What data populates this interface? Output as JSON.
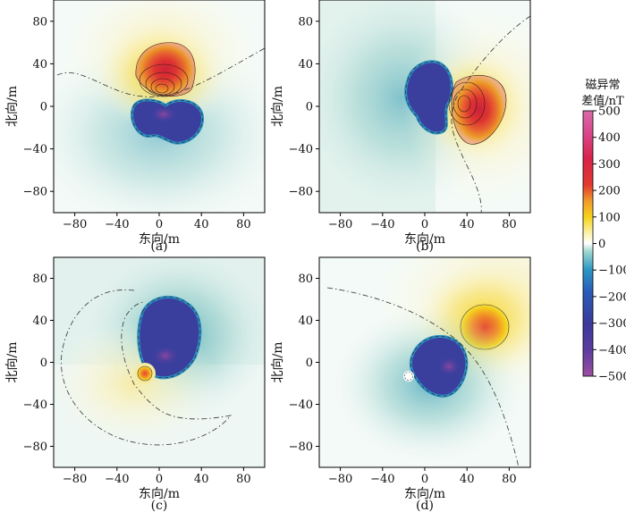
{
  "figure": {
    "colorbar": {
      "title_line1": "磁异常",
      "title_line2": "差值/nT",
      "ticks": [
        500,
        400,
        300,
        200,
        100,
        0,
        -100,
        -200,
        -300,
        -400,
        -500
      ]
    }
  },
  "chart_data": [
    {
      "type": "heatmap",
      "panel_label": "(a)",
      "xlabel": "东向/m",
      "ylabel": "北向/m",
      "xlim": [
        -100,
        100
      ],
      "ylim": [
        -100,
        100
      ],
      "xticks": [
        -80,
        -40,
        0,
        40,
        80
      ],
      "yticks": [
        -80,
        -40,
        0,
        40,
        80
      ],
      "positive_lobe": {
        "center": [
          2,
          18
        ],
        "peak_nT": 300
      },
      "negative_lobe": {
        "center": [
          -2,
          -14
        ],
        "peak_nT": -500
      }
    },
    {
      "type": "heatmap",
      "panel_label": "(b)",
      "xlabel": "东向/m",
      "ylabel": "北向/m",
      "xlim": [
        -100,
        100
      ],
      "ylim": [
        -100,
        100
      ],
      "xticks": [
        -80,
        -40,
        0,
        40,
        80
      ],
      "yticks": [
        -80,
        -40,
        0,
        40,
        80
      ],
      "positive_lobe": {
        "center": [
          18,
          2
        ],
        "peak_nT": 300
      },
      "negative_lobe": {
        "center": [
          -12,
          10
        ],
        "peak_nT": -500
      }
    },
    {
      "type": "heatmap",
      "panel_label": "(c)",
      "xlabel": "东向/m",
      "ylabel": "北向/m",
      "xlim": [
        -100,
        100
      ],
      "ylim": [
        -100,
        100
      ],
      "xticks": [
        -80,
        -40,
        0,
        40,
        80
      ],
      "yticks": [
        -80,
        -40,
        0,
        40,
        80
      ],
      "positive_lobe": {
        "center": [
          -14,
          -12
        ],
        "peak_nT": 200
      },
      "negative_lobe": {
        "center": [
          8,
          6
        ],
        "peak_nT": -500
      }
    },
    {
      "type": "heatmap",
      "panel_label": "(d)",
      "xlabel": "东向/m",
      "ylabel": "北向/m",
      "xlim": [
        -100,
        100
      ],
      "ylim": [
        -100,
        100
      ],
      "xticks": [
        -80,
        -40,
        0,
        40,
        80
      ],
      "yticks": [
        -80,
        -40,
        0,
        40,
        80
      ],
      "positive_lobe": {
        "center": [
          35,
          35
        ],
        "peak_nT": 150
      },
      "negative_lobe": {
        "center": [
          -10,
          0
        ],
        "peak_nT": -500
      }
    }
  ]
}
